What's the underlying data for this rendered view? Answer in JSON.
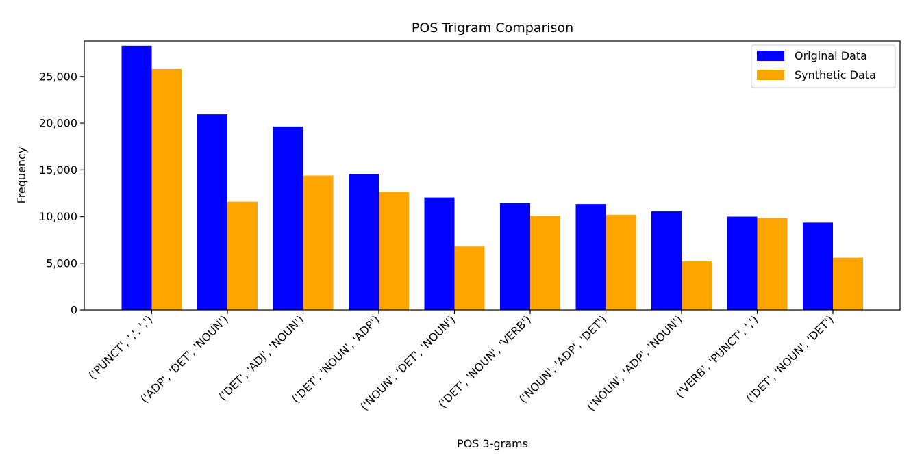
{
  "chart_data": {
    "type": "bar",
    "title": "POS Trigram Comparison",
    "xlabel": "POS 3-grams",
    "ylabel": "Frequency",
    "ylim": [
      0,
      28800
    ],
    "yticks": [
      "0",
      "5,000",
      "10,000",
      "15,000",
      "20,000",
      "25,000"
    ],
    "ytick_values": [
      0,
      5000,
      10000,
      15000,
      20000,
      25000
    ],
    "categories": [
      "('PUNCT', ',', ',')",
      "('ADP', 'DET', 'NOUN')",
      "('DET', 'ADJ', 'NOUN')",
      "('DET', 'NOUN', 'ADP')",
      "('NOUN', 'DET', 'NOUN')",
      "('DET', 'NOUN', 'VERB')",
      "('NOUN', 'ADP', 'DET')",
      "('NOUN', 'ADP', 'NOUN')",
      "('VERB', 'PUNCT', ',')",
      "('DET', 'NOUN', 'DET')"
    ],
    "series": [
      {
        "name": "Original Data",
        "color": "#0000ff",
        "values": [
          28300,
          20950,
          19650,
          14550,
          12050,
          11450,
          11350,
          10550,
          10000,
          9350
        ]
      },
      {
        "name": "Synthetic Data",
        "color": "#ffa500",
        "values": [
          25800,
          11600,
          14400,
          12650,
          6800,
          10100,
          10200,
          5200,
          9850,
          5600
        ]
      }
    ],
    "grid": false,
    "legend_position": "top-right"
  }
}
